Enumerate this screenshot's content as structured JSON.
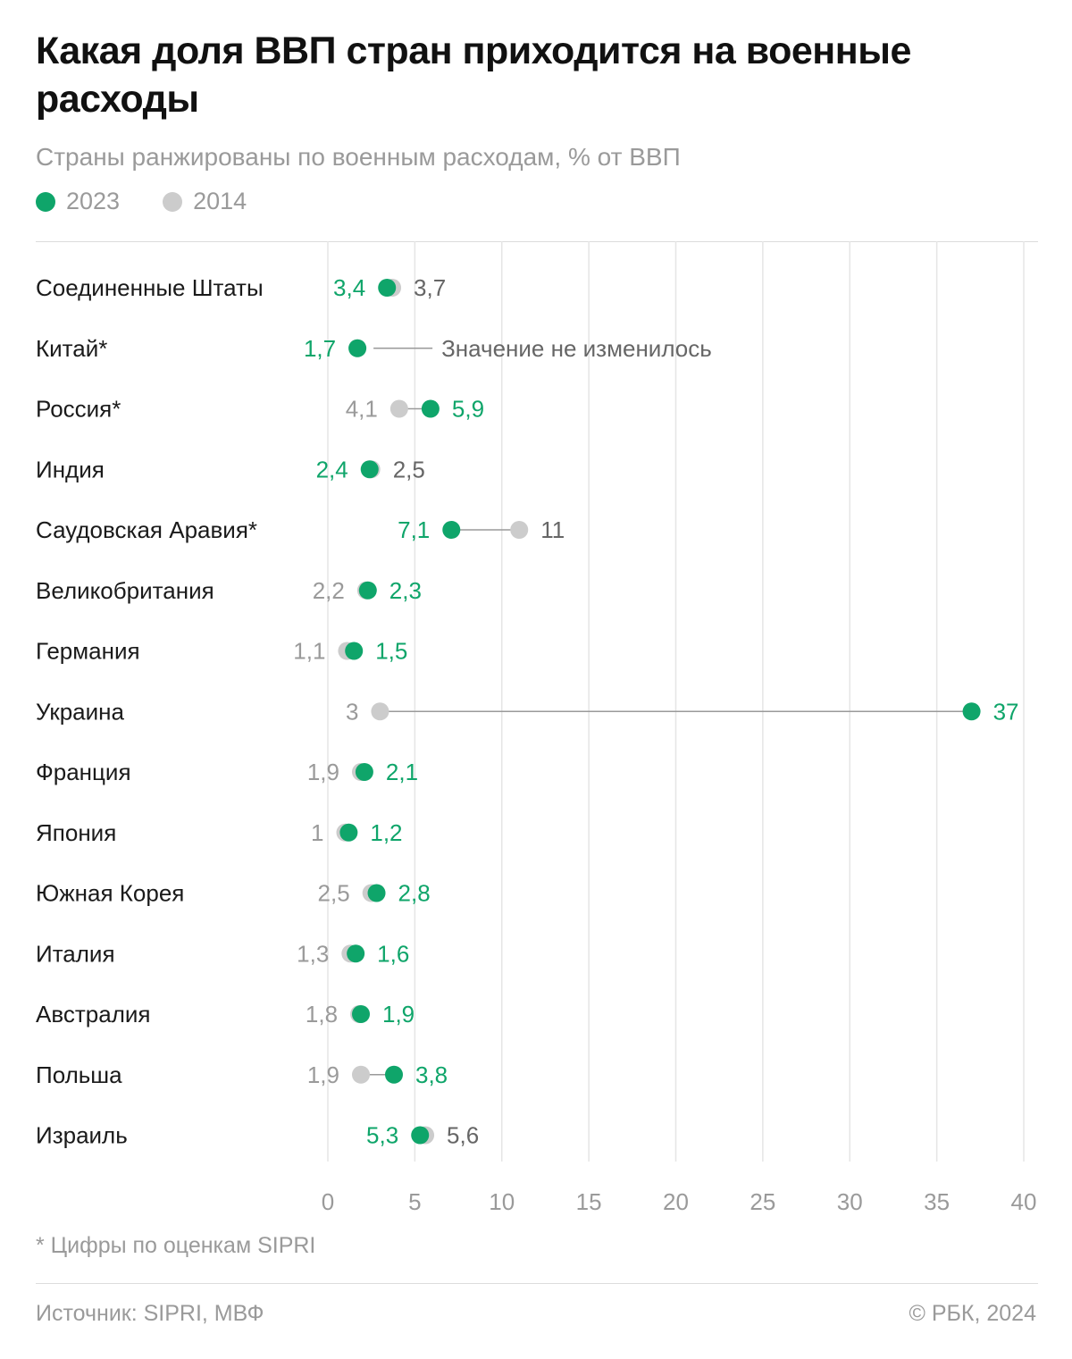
{
  "title": "Какая доля ВВП стран приходится на военные расходы",
  "subtitle": "Страны ранжированы по военным расходам, % от ВВП",
  "colors": {
    "accent_2023": "#0fa56a",
    "base_2014": "#cccccc",
    "muted_text": "#9a9a9a",
    "grid": "#e5e5e5"
  },
  "chart_data": {
    "type": "dot-plot",
    "legend": [
      {
        "name": "2023",
        "color": "#0fa56a"
      },
      {
        "name": "2014",
        "color": "#cccccc"
      }
    ],
    "xlim": [
      0,
      40
    ],
    "xticks": [
      0,
      5,
      10,
      15,
      20,
      25,
      30,
      35,
      40
    ],
    "grid": true,
    "countries": [
      {
        "name": "Соединенные Штаты",
        "v2023": 3.4,
        "v2014": 3.7,
        "l2023": "3,4",
        "l2014": "3,7"
      },
      {
        "name": "Китай*",
        "v2023": 1.7,
        "v2014": 1.7,
        "l2023": "1,7",
        "l2014": "",
        "note": "Значение не изменилось"
      },
      {
        "name": "Россия*",
        "v2023": 5.9,
        "v2014": 4.1,
        "l2023": "5,9",
        "l2014": "4,1"
      },
      {
        "name": "Индия",
        "v2023": 2.4,
        "v2014": 2.5,
        "l2023": "2,4",
        "l2014": "2,5"
      },
      {
        "name": "Саудовская Аравия*",
        "v2023": 7.1,
        "v2014": 11,
        "l2023": "7,1",
        "l2014": "11"
      },
      {
        "name": "Великобритания",
        "v2023": 2.3,
        "v2014": 2.2,
        "l2023": "2,3",
        "l2014": "2,2"
      },
      {
        "name": "Германия",
        "v2023": 1.5,
        "v2014": 1.1,
        "l2023": "1,5",
        "l2014": "1,1"
      },
      {
        "name": "Украина",
        "v2023": 37,
        "v2014": 3,
        "l2023": "37",
        "l2014": "3"
      },
      {
        "name": "Франция",
        "v2023": 2.1,
        "v2014": 1.9,
        "l2023": "2,1",
        "l2014": "1,9"
      },
      {
        "name": "Япония",
        "v2023": 1.2,
        "v2014": 1,
        "l2023": "1,2",
        "l2014": "1"
      },
      {
        "name": "Южная Корея",
        "v2023": 2.8,
        "v2014": 2.5,
        "l2023": "2,8",
        "l2014": "2,5"
      },
      {
        "name": "Италия",
        "v2023": 1.6,
        "v2014": 1.3,
        "l2023": "1,6",
        "l2014": "1,3"
      },
      {
        "name": "Австралия",
        "v2023": 1.9,
        "v2014": 1.8,
        "l2023": "1,9",
        "l2014": "1,8"
      },
      {
        "name": "Польша",
        "v2023": 3.8,
        "v2014": 1.9,
        "l2023": "3,8",
        "l2014": "1,9"
      },
      {
        "name": "Израиль",
        "v2023": 5.3,
        "v2014": 5.6,
        "l2023": "5,3",
        "l2014": "5,6"
      }
    ]
  },
  "footnote": "* Цифры по оценкам SIPRI",
  "source": "Источник: SIPRI, МВФ",
  "copyright": "© РБК, 2024"
}
